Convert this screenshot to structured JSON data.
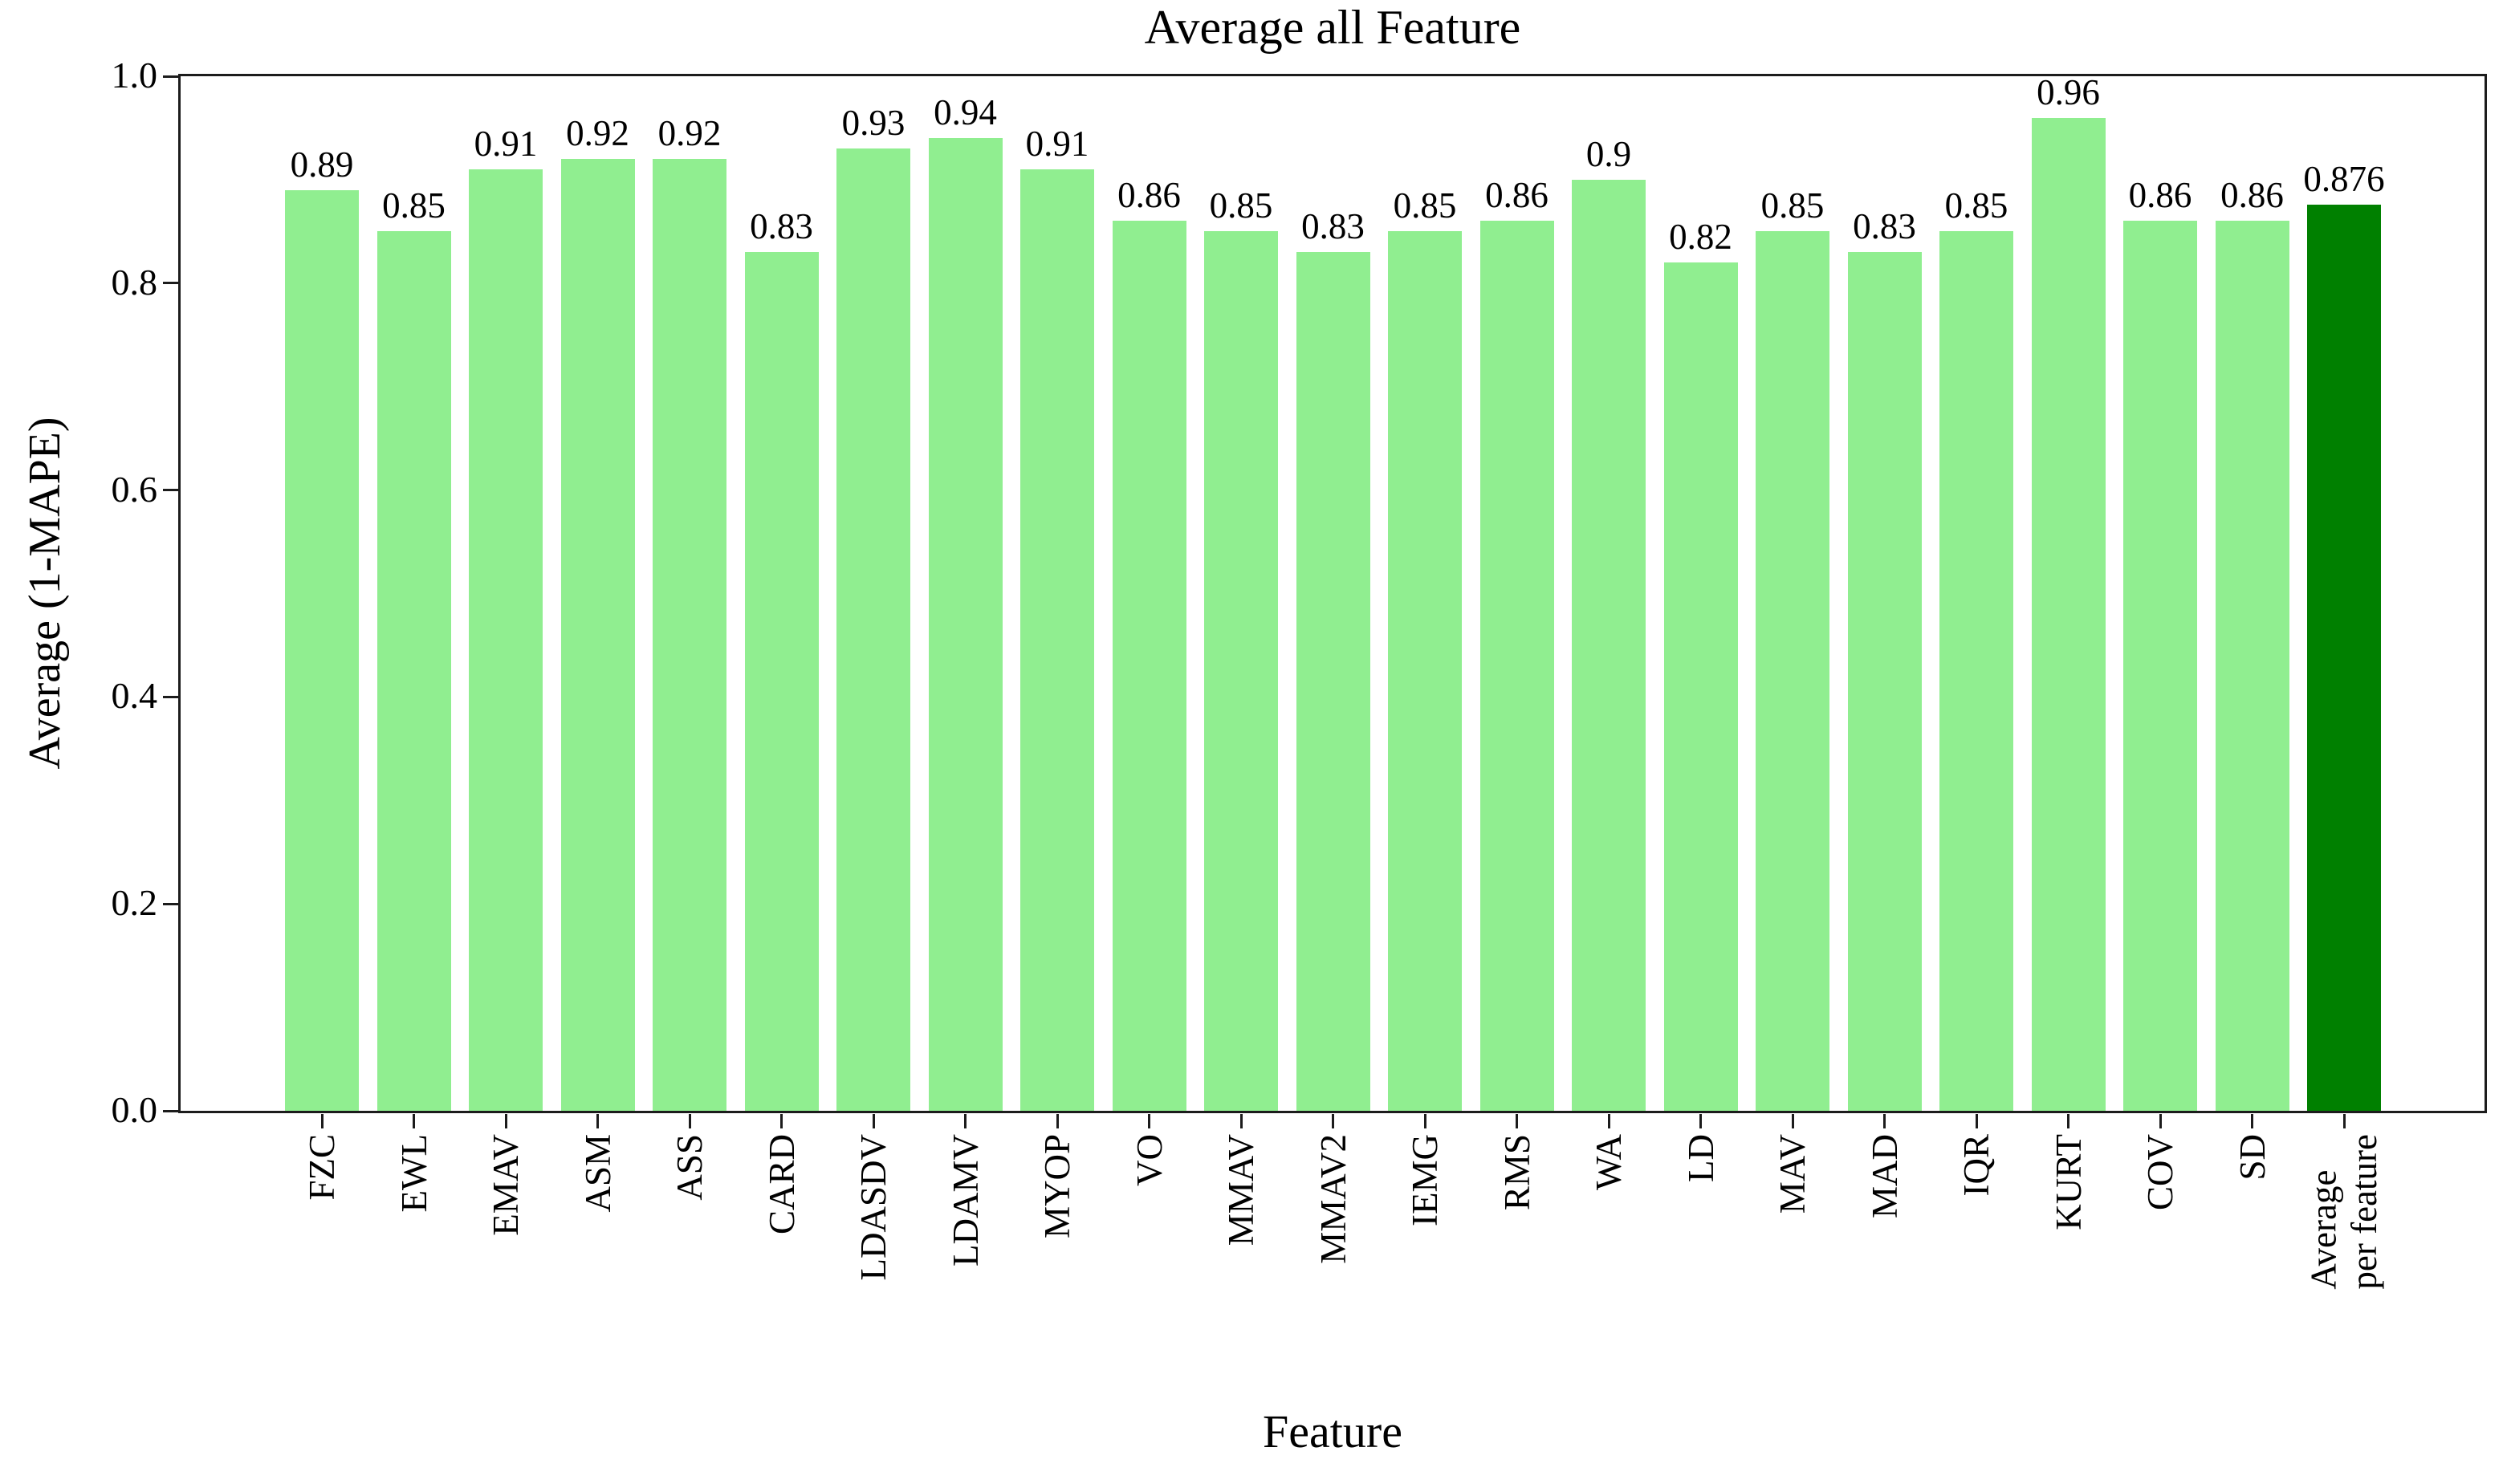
{
  "chart_data": {
    "type": "bar",
    "title": "Average all Feature",
    "xlabel": "Feature",
    "ylabel": "Average (1-MAPE)",
    "categories": [
      "FZC",
      "EWL",
      "EMAV",
      "ASM",
      "ASS",
      "CARD",
      "LDASDV",
      "LDAMV",
      "MYOP",
      "VO",
      "MMAV",
      "MMAV2",
      "IEMG",
      "RMS",
      "WA",
      "LD",
      "MAV",
      "MAD",
      "IQR",
      "KURT",
      "COV",
      "SD",
      "Average\nper feature"
    ],
    "values": [
      0.89,
      0.85,
      0.91,
      0.92,
      0.92,
      0.83,
      0.93,
      0.94,
      0.91,
      0.86,
      0.85,
      0.83,
      0.85,
      0.86,
      0.9,
      0.82,
      0.85,
      0.83,
      0.85,
      0.96,
      0.86,
      0.86,
      0.876
    ],
    "bar_labels": [
      "0.89",
      "0.85",
      "0.91",
      "0.92",
      "0.92",
      "0.83",
      "0.93",
      "0.94",
      "0.91",
      "0.86",
      "0.85",
      "0.83",
      "0.85",
      "0.86",
      "0.9",
      "0.82",
      "0.85",
      "0.83",
      "0.85",
      "0.96",
      "0.86",
      "0.86",
      "0.876"
    ],
    "yticks": [
      "1.0",
      "0.8",
      "0.6",
      "0.4",
      "0.2",
      "0.0"
    ],
    "ylim": [
      0.0,
      1.0
    ],
    "bar_color": "#90EE90",
    "highlight_color": "#008000",
    "highlight_index": 22,
    "grid": false,
    "legend_position": "none",
    "frame": "full-box",
    "xtick_rotation_deg": 90
  }
}
